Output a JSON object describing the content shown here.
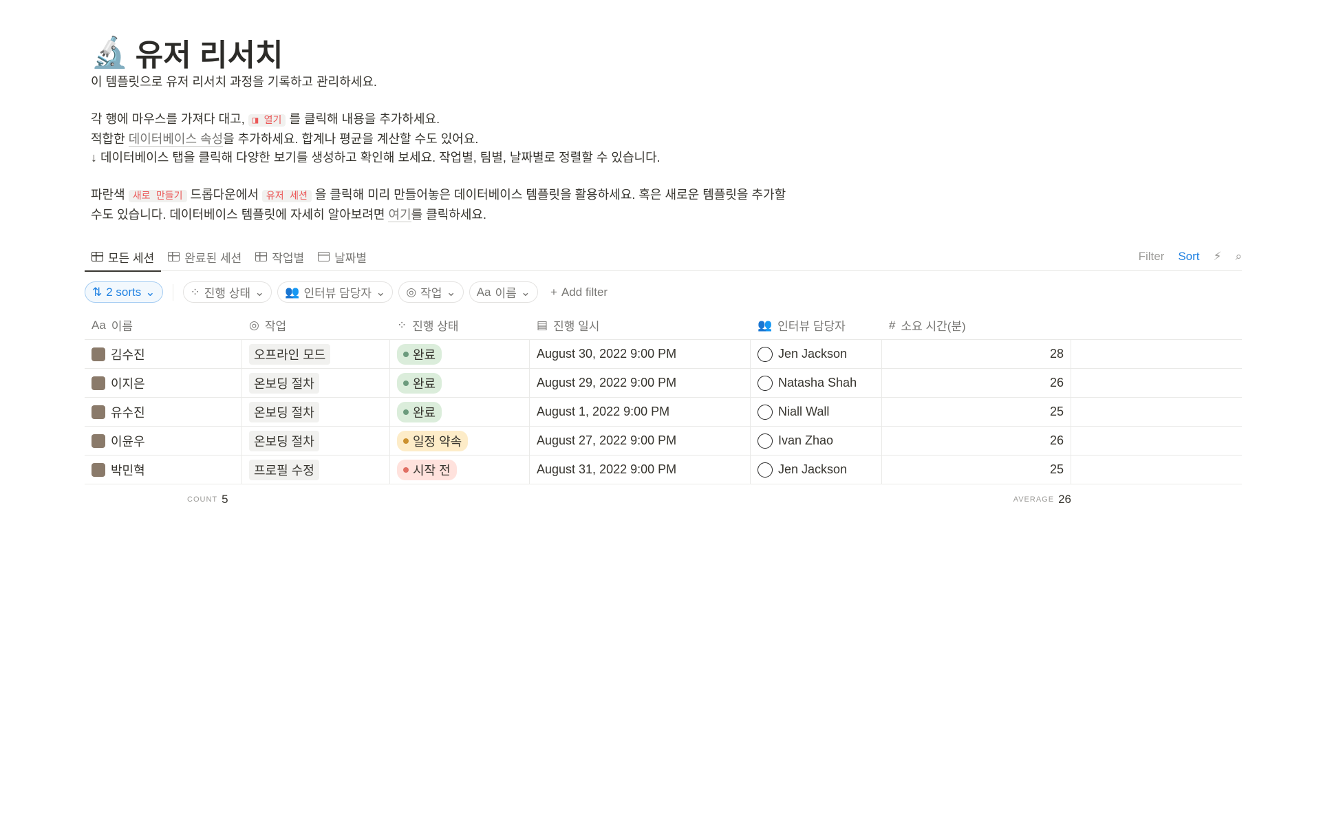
{
  "page": {
    "emoji": "🔬",
    "title": "유저 리서치"
  },
  "description": {
    "line1": "이 템플릿으로 유저 리서치 과정을 기록하고 관리하세요.",
    "line2_a": "각 행에 마우스를 가져다 대고,",
    "line2_chip": "◨ 열기",
    "line2_b": "를 클릭해 내용을 추가하세요.",
    "line3_a": "적합한 ",
    "line3_link": "데이터베이스 속성",
    "line3_b": "을 추가하세요. 합계나 평균을 계산할 수도 있어요.",
    "line4": "↓ 데이터베이스 탭을 클릭해 다양한 보기를 생성하고 확인해 보세요. 작업별, 팀별, 날짜별로 정렬할 수 있습니다.",
    "line5_a": "파란색 ",
    "line5_chip1": "새로 만들기",
    "line5_b": " 드롭다운에서 ",
    "line5_chip2": "유저 세션",
    "line5_c": " 을 클릭해 미리 만들어놓은 데이터베이스 템플릿을 활용하세요. 혹은 새로운 템플릿을 추가할 수도 있습니다. 데이터베이스 템플릿에 자세히 알아보려면 ",
    "line5_link": "여기",
    "line5_d": "를 클릭하세요."
  },
  "tabs": [
    {
      "label": "모든 세션",
      "icon": "table-icon"
    },
    {
      "label": "완료된 세션",
      "icon": "table-icon"
    },
    {
      "label": "작업별",
      "icon": "table-icon"
    },
    {
      "label": "날짜별",
      "icon": "calendar-icon"
    }
  ],
  "toolbar": {
    "filter": "Filter",
    "sort": "Sort",
    "accent": "#2383e2"
  },
  "filters": {
    "sorts": "2 sorts",
    "items": [
      "진행 상태",
      "인터뷰 담당자",
      "작업",
      "이름"
    ],
    "add": "Add filter"
  },
  "columns": [
    "이름",
    "작업",
    "진행 상태",
    "진행 일시",
    "인터뷰 담당자",
    "소요 시간(분)"
  ],
  "rows": [
    {
      "name": "김수진",
      "task": "오프라인 모드",
      "status": "완료",
      "date": "August 30, 2022 9:00 PM",
      "interviewer": "Jen Jackson",
      "minutes": "28"
    },
    {
      "name": "이지은",
      "task": "온보딩 절차",
      "status": "완료",
      "date": "August 29, 2022 9:00 PM",
      "interviewer": "Natasha Shah",
      "minutes": "26"
    },
    {
      "name": "유수진",
      "task": "온보딩 절차",
      "status": "완료",
      "date": "August 1, 2022 9:00 PM",
      "interviewer": "Niall Wall",
      "minutes": "25"
    },
    {
      "name": "이윤우",
      "task": "온보딩 절차",
      "status": "일정 약속",
      "date": "August 27, 2022 9:00 PM",
      "interviewer": "Ivan Zhao",
      "minutes": "26"
    },
    {
      "name": "박민혁",
      "task": "프로필 수정",
      "status": "시작 전",
      "date": "August 31, 2022 9:00 PM",
      "interviewer": "Jen Jackson",
      "minutes": "25"
    }
  ],
  "status_colors": {
    "완료": [
      "#dbeddb",
      "#6c9b7d"
    ],
    "일정 약속": [
      "#fdecc8",
      "#cb912f"
    ],
    "시작 전": [
      "#ffe2dd",
      "#e16f64"
    ]
  },
  "footer": {
    "count_label": "COUNT",
    "count": "5",
    "avg_label": "AVERAGE",
    "avg": "26"
  }
}
